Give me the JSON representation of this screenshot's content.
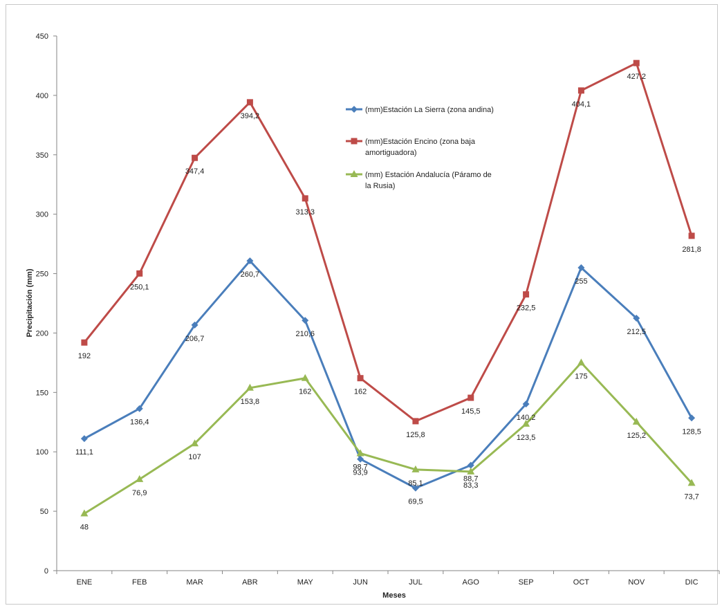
{
  "chart_data": {
    "type": "line",
    "title": "",
    "xlabel": "Meses",
    "ylabel": "Precipitación  (mm)",
    "ylim": [
      0,
      450
    ],
    "yticks": [
      0,
      50,
      100,
      150,
      200,
      250,
      300,
      350,
      400,
      450
    ],
    "grid": false,
    "legend_position": "upper-center",
    "categories": [
      "ENE",
      "FEB",
      "MAR",
      "ABR",
      "MAY",
      "JUN",
      "JUL",
      "AGO",
      "SEP",
      "OCT",
      "NOV",
      "DIC"
    ],
    "series": [
      {
        "name": "(mm)Estación La Sierra (zona andina)",
        "legend_lines": [
          "(mm)Estación La Sierra (zona andina)"
        ],
        "color": "#4a7ebb",
        "marker": "diamond",
        "values": [
          111.1,
          136.4,
          206.7,
          260.7,
          210.6,
          93.9,
          69.5,
          88.7,
          140.2,
          255,
          212.5,
          128.5
        ],
        "labels": [
          "111,1",
          "136,4",
          "206,7",
          "260,7",
          "210,6",
          "93,9",
          "69,5",
          "88,7",
          "140,2",
          "255",
          "212,5",
          "128,5"
        ]
      },
      {
        "name": "(mm)Estación  Encino (zona baja amortiguadora)",
        "legend_lines": [
          "(mm)Estación  Encino (zona baja",
          "amortiguadora)"
        ],
        "color": "#be4b48",
        "marker": "square",
        "values": [
          192,
          250.1,
          347.4,
          394.2,
          313.3,
          162,
          125.8,
          145.5,
          232.5,
          404.1,
          427.2,
          281.8
        ],
        "labels": [
          "192",
          "250,1",
          "347,4",
          "394,2",
          "313,3",
          "162",
          "125,8",
          "145,5",
          "232,5",
          "404,1",
          "427,2",
          "281,8"
        ]
      },
      {
        "name": "(mm) Estación Andalucía (Páramo de la Rusia)",
        "legend_lines": [
          "(mm) Estación Andalucía (Páramo de",
          "la Rusia)"
        ],
        "color": "#98b954",
        "marker": "triangle",
        "values": [
          48,
          76.9,
          107,
          153.8,
          162,
          98.7,
          85.1,
          83.3,
          123.5,
          175,
          125.2,
          73.7
        ],
        "labels": [
          "48",
          "76,9",
          "107",
          "153,8",
          "162",
          "98,7",
          "85,1",
          "83,3",
          "123,5",
          "175",
          "125,2",
          "73,7"
        ]
      }
    ]
  }
}
